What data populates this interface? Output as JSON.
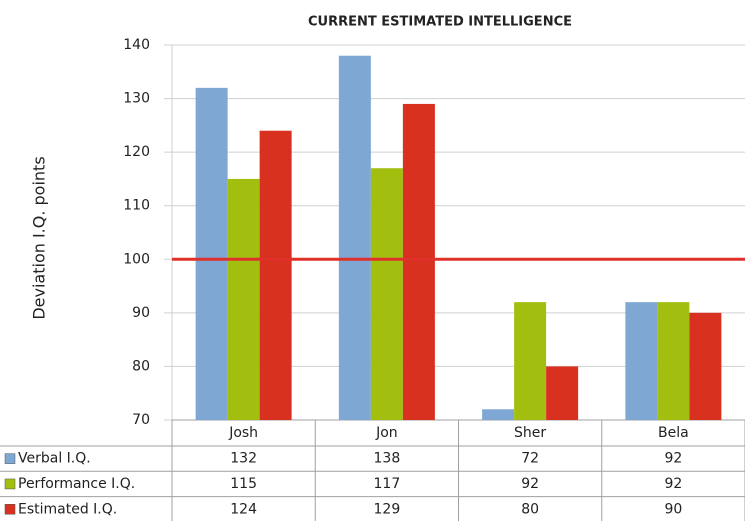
{
  "chart_data": {
    "type": "bar",
    "title": "CURRENT ESTIMATED INTELLIGENCE",
    "y_label": "Deviation I.Q. points",
    "categories": [
      "Josh",
      "Jon",
      "Sher",
      "Bela"
    ],
    "series": [
      {
        "name": "Verbal I.Q.",
        "color": "#7fa7d4",
        "values": [
          132,
          138,
          72,
          92
        ]
      },
      {
        "name": "Performance I.Q.",
        "color": "#a2bf10",
        "values": [
          115,
          117,
          92,
          92
        ]
      },
      {
        "name": "Estimated I.Q.",
        "color": "#d8311f",
        "values": [
          124,
          129,
          80,
          90
        ]
      }
    ],
    "ylim": [
      70,
      140
    ],
    "yticks": [
      70,
      80,
      90,
      100,
      110,
      120,
      130,
      140
    ],
    "reference_line": 100,
    "reference_color": "#e0302a",
    "grid": true
  }
}
